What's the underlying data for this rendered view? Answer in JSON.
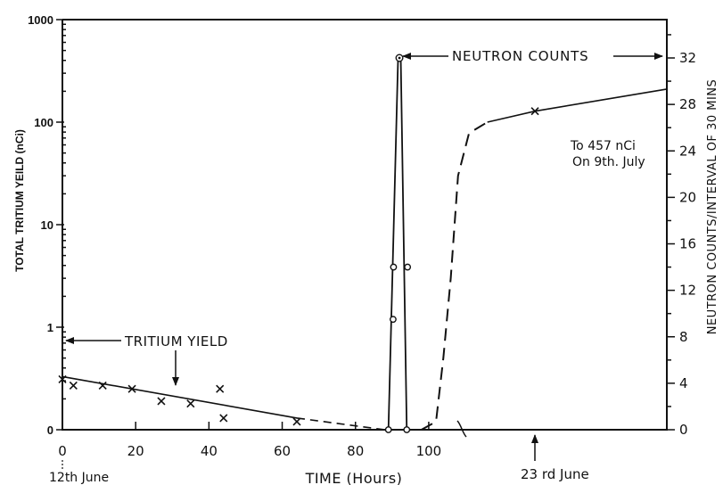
{
  "chart_data": {
    "type": "line",
    "title": "",
    "xlabel": "TIME (Hours)",
    "ylabel_left": "TOTAL TRITIUM YEILD (nCi)",
    "ylabel_right": "NEUTRON COUNTS/INTERVAL OF 30 MINS",
    "x_range": [
      0,
      165
    ],
    "x_ticks": [
      {
        "value": 0,
        "label": "0"
      },
      {
        "value": 20,
        "label": "20"
      },
      {
        "value": 40,
        "label": "40"
      },
      {
        "value": 60,
        "label": "60"
      },
      {
        "value": 80,
        "label": "80"
      },
      {
        "value": 100,
        "label": "100"
      }
    ],
    "y_left_scale": "log",
    "y_left_range": [
      0.1,
      1000
    ],
    "y_left_ticks": [
      {
        "value": 0.1,
        "label": "0"
      },
      {
        "value": 1,
        "label": "1"
      },
      {
        "value": 10,
        "label": "10"
      },
      {
        "value": 100,
        "label": "100"
      },
      {
        "value": 1000,
        "label": "1000"
      }
    ],
    "y_right_range": [
      0,
      35.3
    ],
    "y_right_ticks": [
      {
        "value": 0,
        "label": "0"
      },
      {
        "value": 4,
        "label": "4"
      },
      {
        "value": 8,
        "label": "8"
      },
      {
        "value": 12,
        "label": "12"
      },
      {
        "value": 16,
        "label": "16"
      },
      {
        "value": 20,
        "label": "20"
      },
      {
        "value": 24,
        "label": "24"
      },
      {
        "value": 28,
        "label": "28"
      },
      {
        "value": 32,
        "label": "32"
      }
    ],
    "series": [
      {
        "name": "TRITIUM YIELD",
        "axis": "left",
        "style": "solid",
        "markers": "x",
        "points": [
          {
            "x": 0,
            "y": 0.31
          },
          {
            "x": 3,
            "y": 0.27
          },
          {
            "x": 11,
            "y": 0.27
          },
          {
            "x": 19,
            "y": 0.25
          },
          {
            "x": 27,
            "y": 0.19
          },
          {
            "x": 35,
            "y": 0.18
          },
          {
            "x": 43,
            "y": 0.25
          },
          {
            "x": 44,
            "y": 0.13
          },
          {
            "x": 64,
            "y": 0.12
          }
        ],
        "trend": [
          {
            "x": 0,
            "y": 0.33
          },
          {
            "x": 64,
            "y": 0.13
          }
        ],
        "trend_extension": [
          {
            "x": 64,
            "y": 0.13
          },
          {
            "x": 88,
            "y": 0.1
          }
        ]
      },
      {
        "name": "NEUTRON COUNTS",
        "axis": "right",
        "style": "solid",
        "markers": "o",
        "points": [
          {
            "x": 89,
            "y": 0
          },
          {
            "x": 91,
            "y": 9.5
          },
          {
            "x": 91,
            "y": 14
          },
          {
            "x": 92,
            "y": 32
          },
          {
            "x": 93,
            "y": 14
          },
          {
            "x": 94,
            "y": 0
          }
        ]
      },
      {
        "name": "",
        "axis": "left",
        "style": "dashed",
        "markers": "none",
        "points": [
          {
            "x": 98,
            "y": 0.1
          },
          {
            "x": 102,
            "y": 0.12
          },
          {
            "x": 104,
            "y": 0.5
          },
          {
            "x": 106,
            "y": 3
          },
          {
            "x": 108,
            "y": 30
          },
          {
            "x": 111,
            "y": 78
          },
          {
            "x": 116,
            "y": 100
          }
        ]
      },
      {
        "name": "",
        "axis": "left",
        "style": "solid",
        "markers": "x",
        "points": [
          {
            "x": 116,
            "y": 100
          },
          {
            "x": 129,
            "y": 128
          },
          {
            "x": 165,
            "y": 210
          }
        ]
      }
    ],
    "annotations": {
      "date_start": "12th June",
      "date_end": "23 rd June",
      "tritium_label": "TRITIUM YIELD",
      "neutron_label": "NEUTRON COUNTS",
      "final_note_line1": "To 457 nCi",
      "final_note_line2": "On 9th. July"
    },
    "grid": false,
    "legend": "none"
  }
}
